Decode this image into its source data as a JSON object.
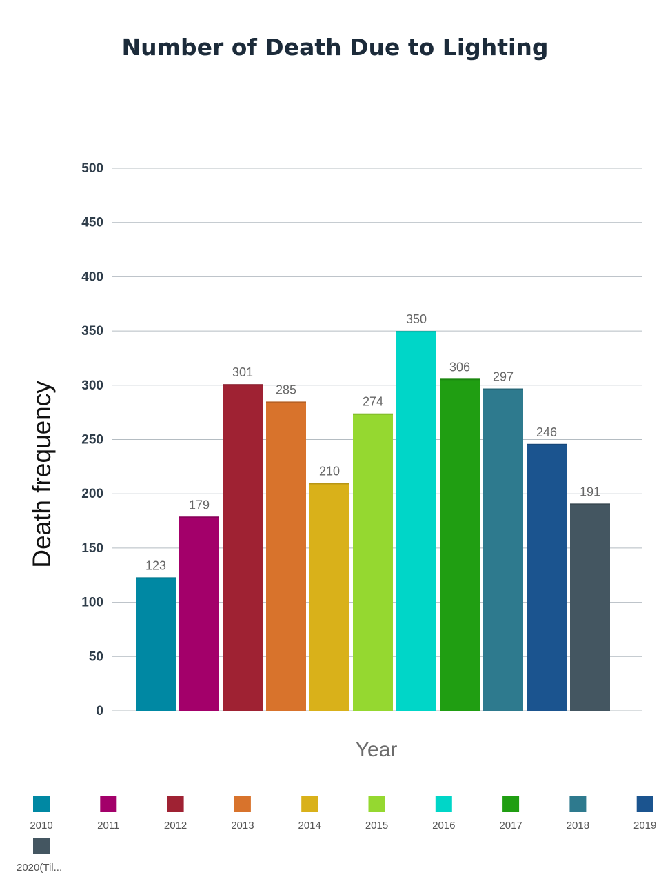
{
  "chart_data": {
    "type": "bar",
    "title": "Number of Death Due to Lighting",
    "xlabel": "Year",
    "ylabel": "Death frequency",
    "categories": [
      "2010",
      "2011",
      "2012",
      "2013",
      "2014",
      "2015",
      "2016",
      "2017",
      "2018",
      "2019",
      "2020(Til..."
    ],
    "values": [
      123,
      179,
      301,
      285,
      210,
      274,
      350,
      306,
      297,
      246,
      191
    ],
    "colors": [
      "#0088a3",
      "#a3006a",
      "#9f2233",
      "#d8732c",
      "#d9b11a",
      "#95d830",
      "#00d6c8",
      "#209e12",
      "#2e7a8e",
      "#1b548f",
      "#445661"
    ],
    "ylim": [
      0,
      500
    ],
    "yticks": [
      0,
      50,
      100,
      150,
      200,
      250,
      300,
      350,
      400,
      450,
      500
    ],
    "grid": true,
    "legend_position": "bottom"
  }
}
